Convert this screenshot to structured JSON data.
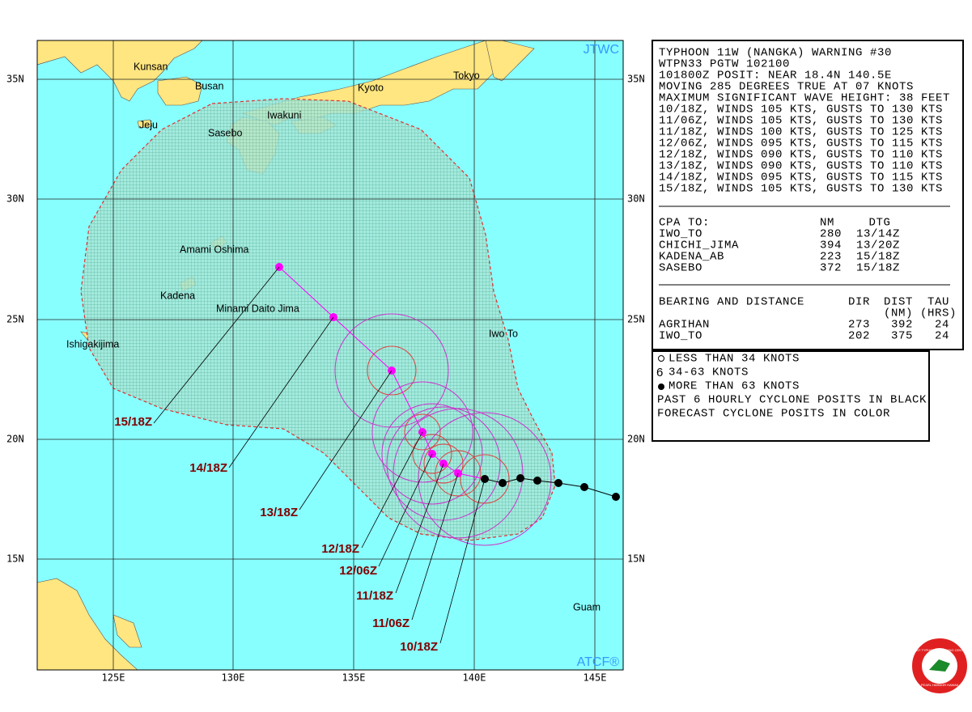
{
  "map": {
    "source": "JTWC",
    "footer": "ATCF®",
    "lat_labels": [
      "35N",
      "30N",
      "25N",
      "20N",
      "15N"
    ],
    "lon_labels": [
      "125E",
      "130E",
      "135E",
      "140E",
      "145E"
    ],
    "places": [
      "Kunsan",
      "Busan",
      "Jeju",
      "Sasebo",
      "Iwakuni",
      "Kyoto",
      "Tokyo",
      "Amami Oshima",
      "Kadena",
      "Minami Daito Jima",
      "Ishigakijima",
      "Iwo To",
      "Guam"
    ],
    "track_labels": [
      "15/18Z",
      "14/18Z",
      "13/18Z",
      "12/18Z",
      "12/06Z",
      "11/18Z",
      "11/06Z",
      "10/18Z"
    ]
  },
  "warning": {
    "lines": [
      "TYPHOON 11W (NANGKA) WARNING #30",
      "WTPN33 PGTW 102100",
      "101800Z POSIT: NEAR 18.4N 140.5E",
      "MOVING 285 DEGREES TRUE AT 07 KNOTS",
      "MAXIMUM SIGNIFICANT WAVE HEIGHT: 38 FEET",
      "10/18Z, WINDS 105 KTS, GUSTS TO 130 KTS",
      "11/06Z, WINDS 105 KTS, GUSTS TO 130 KTS",
      "11/18Z, WINDS 100 KTS, GUSTS TO 125 KTS",
      "12/06Z, WINDS 095 KTS, GUSTS TO 115 KTS",
      "12/18Z, WINDS 090 KTS, GUSTS TO 110 KTS",
      "13/18Z, WINDS 090 KTS, GUSTS TO 110 KTS",
      "14/18Z, WINDS 095 KTS, GUSTS TO 115 KTS",
      "15/18Z, WINDS 105 KTS, GUSTS TO 130 KTS"
    ]
  },
  "cpa": {
    "header": [
      "CPA TO:",
      "NM",
      "DTG"
    ],
    "rows": [
      [
        "IWO_TO",
        280,
        "13/14Z"
      ],
      [
        "CHICHI_JIMA",
        394,
        "13/20Z"
      ],
      [
        "KADENA_AB",
        223,
        "15/18Z"
      ],
      [
        "SASEBO",
        372,
        "15/18Z"
      ]
    ]
  },
  "bearing": {
    "header": [
      "BEARING AND DISTANCE",
      "DIR",
      "DIST",
      "TAU"
    ],
    "subheader": [
      "(NM)",
      "(HRS)"
    ],
    "rows": [
      [
        "AGRIHAN",
        273,
        392,
        24
      ],
      [
        "IWO_TO",
        202,
        375,
        24
      ]
    ]
  },
  "legend": [
    "LESS THAN 34 KNOTS",
    "34-63 KNOTS",
    "MORE THAN 63 KNOTS",
    "PAST 6 HOURLY CYCLONE POSITS IN BLACK",
    "FORECAST CYCLONE POSITS IN COLOR"
  ],
  "logo": [
    "JOINT TYPHOON WARNING CENTER",
    "PEARL HARBOR HAWAII"
  ]
}
